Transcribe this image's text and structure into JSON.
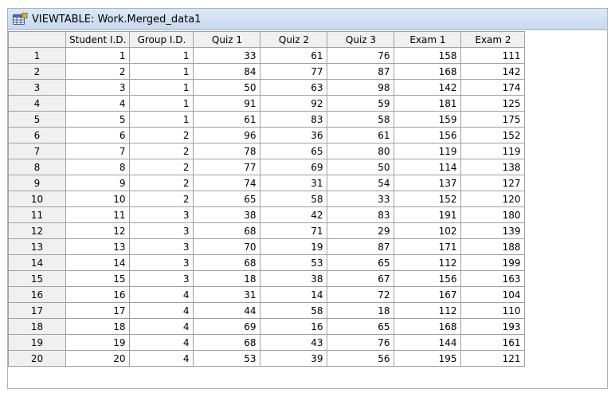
{
  "window": {
    "title": "VIEWTABLE: Work.Merged_data1"
  },
  "table": {
    "columns": [
      "",
      "Student I.D.",
      "Group I.D.",
      "Quiz 1",
      "Quiz 2",
      "Quiz 3",
      "Exam 1",
      "Exam 2"
    ],
    "rows": [
      [
        "1",
        "1",
        "1",
        "33",
        "61",
        "76",
        "158",
        "111"
      ],
      [
        "2",
        "2",
        "1",
        "84",
        "77",
        "87",
        "168",
        "142"
      ],
      [
        "3",
        "3",
        "1",
        "50",
        "63",
        "98",
        "142",
        "174"
      ],
      [
        "4",
        "4",
        "1",
        "91",
        "92",
        "59",
        "181",
        "125"
      ],
      [
        "5",
        "5",
        "1",
        "61",
        "83",
        "58",
        "159",
        "175"
      ],
      [
        "6",
        "6",
        "2",
        "96",
        "36",
        "61",
        "156",
        "152"
      ],
      [
        "7",
        "7",
        "2",
        "78",
        "65",
        "80",
        "119",
        "119"
      ],
      [
        "8",
        "8",
        "2",
        "77",
        "69",
        "50",
        "114",
        "138"
      ],
      [
        "9",
        "9",
        "2",
        "74",
        "31",
        "54",
        "137",
        "127"
      ],
      [
        "10",
        "10",
        "2",
        "65",
        "58",
        "33",
        "152",
        "120"
      ],
      [
        "11",
        "11",
        "3",
        "38",
        "42",
        "83",
        "191",
        "180"
      ],
      [
        "12",
        "12",
        "3",
        "68",
        "71",
        "29",
        "102",
        "139"
      ],
      [
        "13",
        "13",
        "3",
        "70",
        "19",
        "87",
        "171",
        "188"
      ],
      [
        "14",
        "14",
        "3",
        "68",
        "53",
        "65",
        "112",
        "199"
      ],
      [
        "15",
        "15",
        "3",
        "18",
        "38",
        "67",
        "156",
        "163"
      ],
      [
        "16",
        "16",
        "4",
        "31",
        "14",
        "72",
        "167",
        "104"
      ],
      [
        "17",
        "17",
        "4",
        "44",
        "58",
        "18",
        "112",
        "110"
      ],
      [
        "18",
        "18",
        "4",
        "69",
        "16",
        "65",
        "168",
        "193"
      ],
      [
        "19",
        "19",
        "4",
        "68",
        "43",
        "76",
        "144",
        "161"
      ],
      [
        "20",
        "20",
        "4",
        "53",
        "39",
        "56",
        "195",
        "121"
      ]
    ]
  },
  "icons": {
    "title": "viewtable-grid-icon"
  }
}
